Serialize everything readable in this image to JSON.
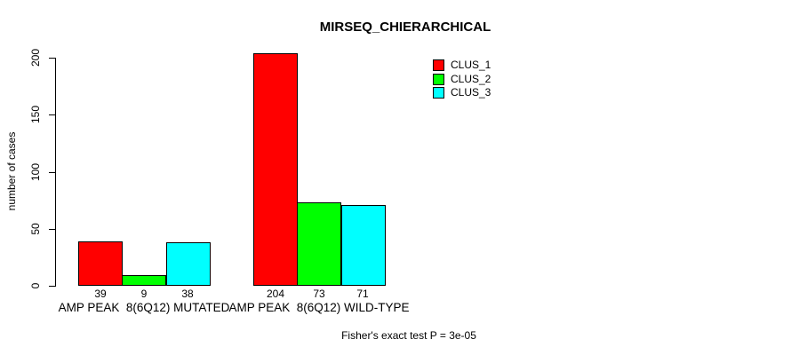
{
  "chart_data": {
    "type": "bar",
    "title": "MIRSEQ_CHIERARCHICAL",
    "ylabel": "number of cases",
    "xlabel": "",
    "footnote": "Fisher's exact test P = 3e-05",
    "ylim": [
      0,
      200
    ],
    "yticks": [
      0,
      50,
      100,
      150,
      200
    ],
    "grid": false,
    "legend_position": "top-right",
    "legend_entries": [
      "CLUS_1",
      "CLUS_2",
      "CLUS_3"
    ],
    "categories": [
      "AMP PEAK  8(6Q12) MUTATED",
      "AMP PEAK  8(6Q12) WILD-TYPE"
    ],
    "series": [
      {
        "name": "CLUS_1",
        "color": "#FF0000",
        "values": [
          39,
          204
        ]
      },
      {
        "name": "CLUS_2",
        "color": "#00FF00",
        "values": [
          9,
          73
        ]
      },
      {
        "name": "CLUS_3",
        "color": "#00FFFF",
        "values": [
          38,
          71
        ]
      }
    ],
    "bar_value_labels": [
      [
        "39",
        "9",
        "38"
      ],
      [
        "204",
        "73",
        "71"
      ]
    ],
    "colors": {
      "bar_border": "#000000",
      "axis": "#000000",
      "background": "#FFFFFF"
    }
  }
}
